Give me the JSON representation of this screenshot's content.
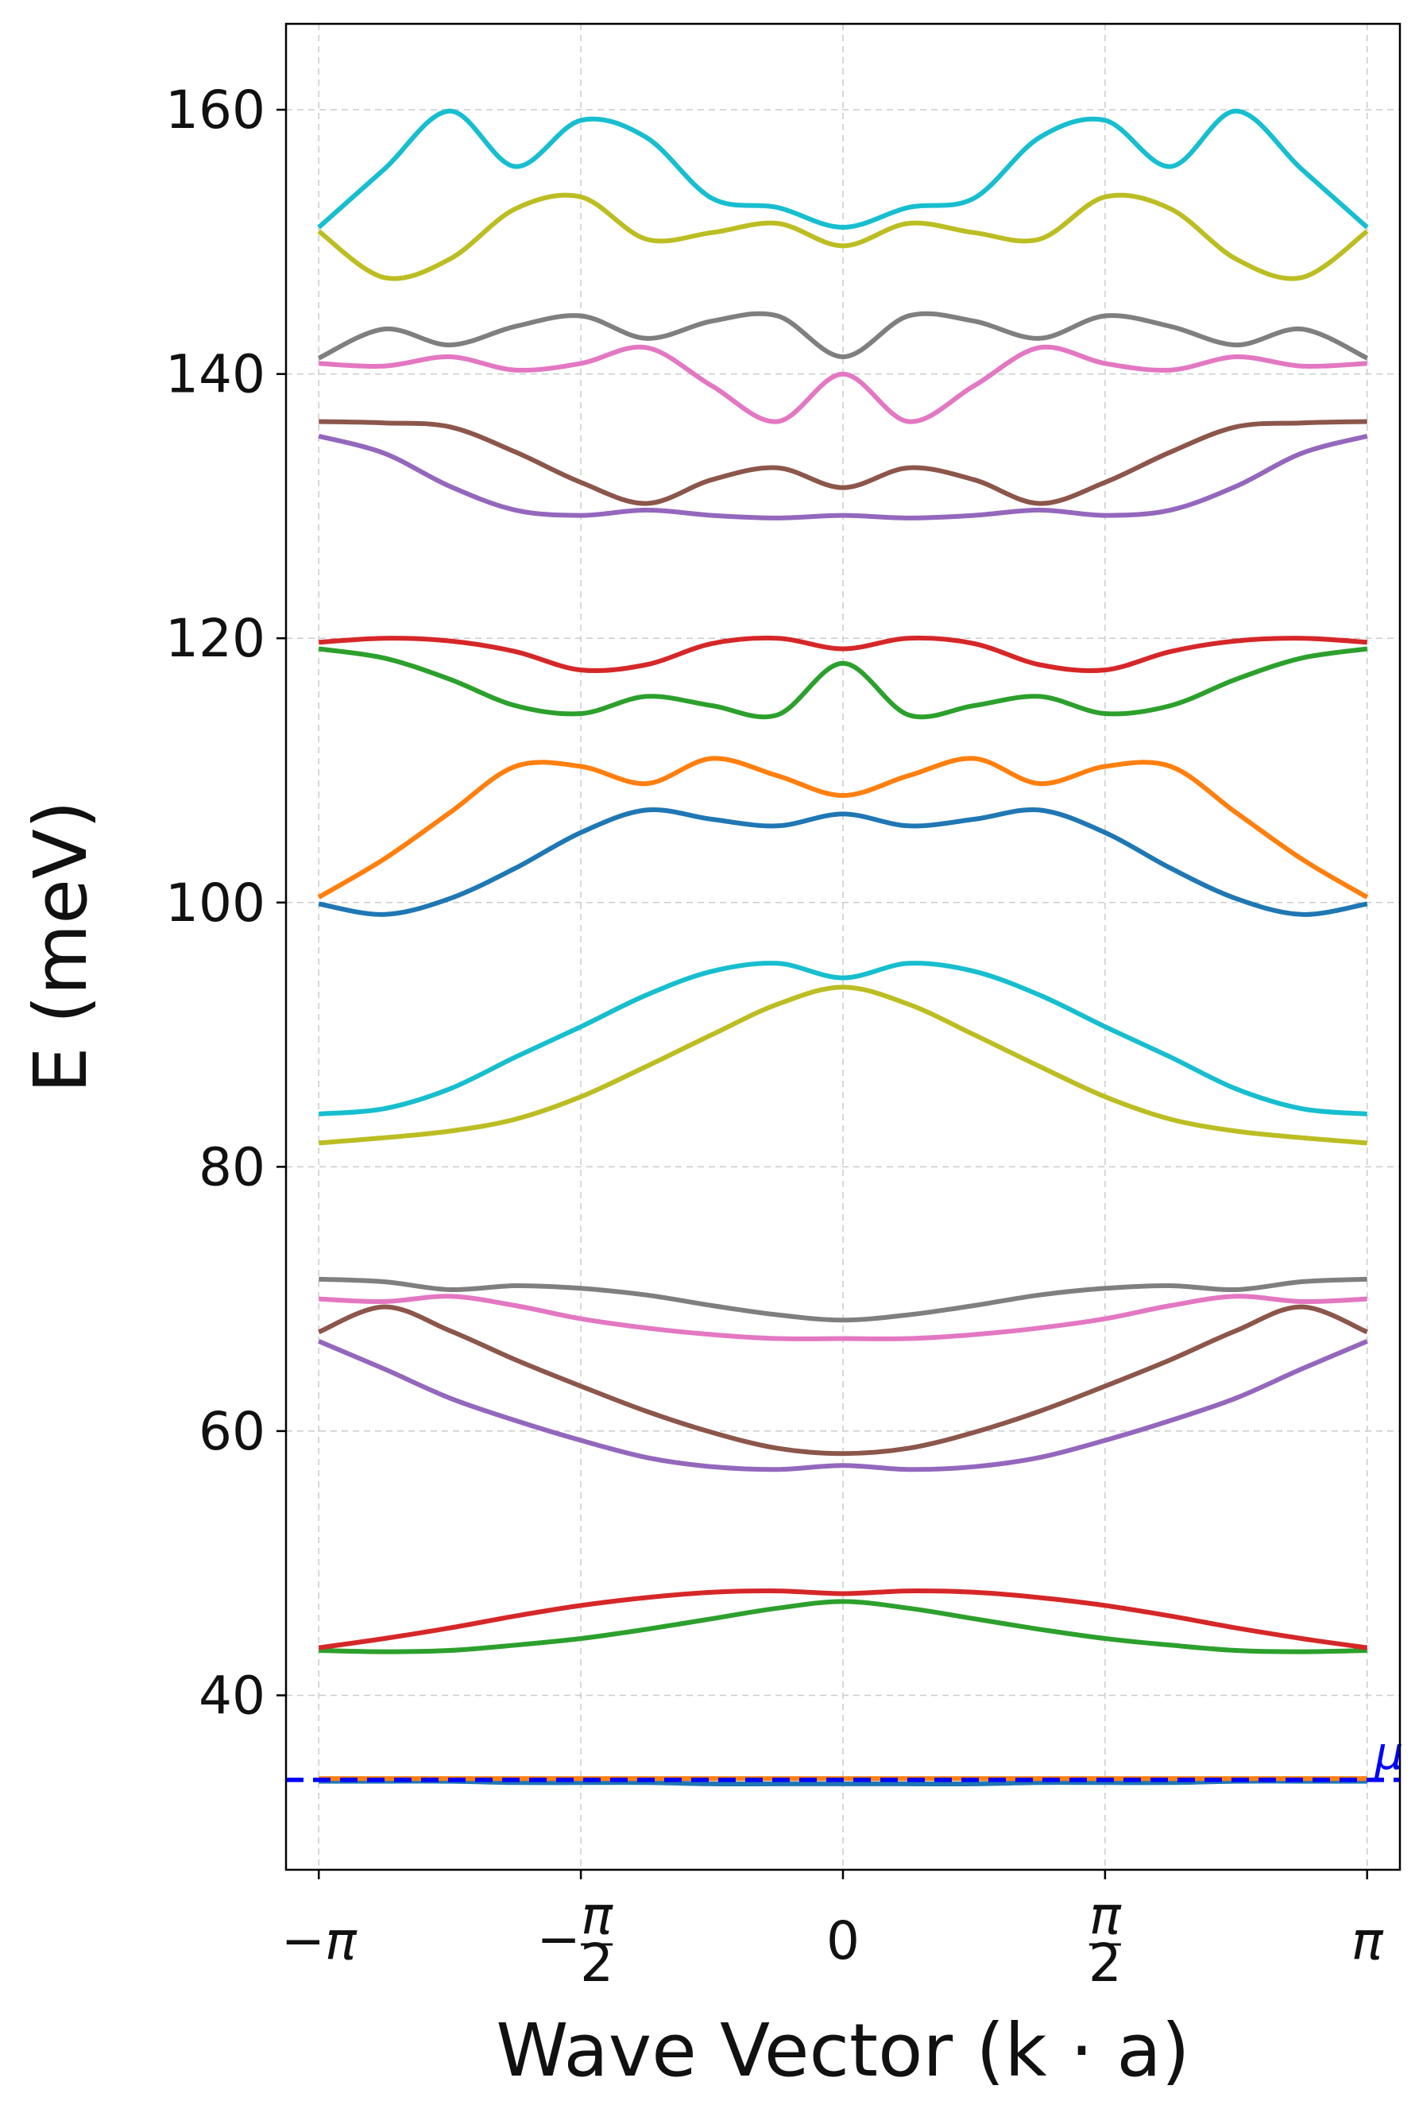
{
  "chart_data": {
    "type": "line",
    "title": "",
    "xlabel": "Wave Vector (k · a)",
    "ylabel": "E (meV)",
    "xlim": [
      -3.3379,
      3.3379
    ],
    "ylim": [
      26.8,
      166.5
    ],
    "x_ticks": [
      {
        "value": -3.1416,
        "label": "−π"
      },
      {
        "value": -1.5708,
        "label": "−π/2"
      },
      {
        "value": 0,
        "label": "0"
      },
      {
        "value": 1.5708,
        "label": "π/2"
      },
      {
        "value": 3.1416,
        "label": "π"
      }
    ],
    "y_ticks": [
      40,
      60,
      80,
      100,
      120,
      140,
      160
    ],
    "grid": true,
    "legend": "none",
    "reference_line": {
      "name": "μ",
      "y": 33.6,
      "color": "#0000ff",
      "style": "dashed"
    },
    "x": [
      -3.1416,
      -2.7489,
      -2.3562,
      -1.9635,
      -1.5708,
      -1.1781,
      -0.7854,
      -0.3927,
      0,
      0.3927,
      0.7854,
      1.1781,
      1.5708,
      1.9635,
      2.3562,
      2.7489,
      3.1416
    ],
    "series": [
      {
        "color": "#1f77b4",
        "values": [
          33.5,
          33.5,
          33.5,
          33.4,
          33.4,
          33.4,
          33.3,
          33.3,
          33.3,
          33.3,
          33.3,
          33.4,
          33.4,
          33.4,
          33.5,
          33.5,
          33.5
        ]
      },
      {
        "color": "#ff7f0e",
        "values": [
          33.7,
          33.7,
          33.7,
          33.7,
          33.7,
          33.7,
          33.7,
          33.7,
          33.7,
          33.7,
          33.7,
          33.7,
          33.7,
          33.7,
          33.7,
          33.7,
          33.7
        ]
      },
      {
        "color": "#2ca02c",
        "values": [
          43.4,
          43.3,
          43.4,
          43.8,
          44.3,
          45.0,
          45.8,
          46.6,
          47.1,
          46.6,
          45.8,
          45.0,
          44.3,
          43.8,
          43.4,
          43.3,
          43.4
        ]
      },
      {
        "color": "#d62728",
        "values": [
          43.6,
          44.3,
          45.1,
          46.0,
          46.8,
          47.4,
          47.8,
          47.9,
          47.7,
          47.9,
          47.8,
          47.4,
          46.8,
          46.0,
          45.1,
          44.3,
          43.6
        ]
      },
      {
        "color": "#9467bd",
        "values": [
          66.8,
          64.7,
          62.5,
          60.8,
          59.3,
          58.0,
          57.3,
          57.1,
          57.4,
          57.1,
          57.3,
          58.0,
          59.3,
          60.8,
          62.5,
          64.7,
          66.8
        ]
      },
      {
        "color": "#8c564b",
        "values": [
          67.5,
          69.4,
          67.6,
          65.4,
          63.4,
          61.5,
          59.9,
          58.7,
          58.3,
          58.7,
          59.9,
          61.5,
          63.4,
          65.4,
          67.6,
          69.4,
          67.5
        ]
      },
      {
        "color": "#e377c2",
        "values": [
          70.0,
          69.8,
          70.2,
          69.5,
          68.5,
          67.8,
          67.3,
          67.0,
          67.0,
          67.0,
          67.3,
          67.8,
          68.5,
          69.5,
          70.2,
          69.8,
          70.0
        ]
      },
      {
        "color": "#7f7f7f",
        "values": [
          71.5,
          71.3,
          70.7,
          71.0,
          70.8,
          70.3,
          69.5,
          68.8,
          68.4,
          68.8,
          69.5,
          70.3,
          70.8,
          71.0,
          70.7,
          71.3,
          71.5
        ]
      },
      {
        "color": "#bcbd22",
        "values": [
          81.8,
          82.2,
          82.7,
          83.6,
          85.3,
          87.6,
          90.0,
          92.3,
          93.6,
          92.3,
          90.0,
          87.6,
          85.3,
          83.6,
          82.7,
          82.2,
          81.8
        ]
      },
      {
        "color": "#17becf",
        "values": [
          84.0,
          84.4,
          85.9,
          88.3,
          90.6,
          93.0,
          94.8,
          95.4,
          94.3,
          95.4,
          94.8,
          93.0,
          90.6,
          88.3,
          85.9,
          84.4,
          84.0
        ]
      },
      {
        "color": "#1f77b4",
        "values": [
          99.9,
          99.1,
          100.3,
          102.6,
          105.3,
          107.0,
          106.3,
          105.8,
          106.7,
          105.8,
          106.3,
          107.0,
          105.3,
          102.6,
          100.3,
          99.1,
          99.9
        ]
      },
      {
        "color": "#ff7f0e",
        "values": [
          100.4,
          103.3,
          106.8,
          110.3,
          110.3,
          109.0,
          110.9,
          109.6,
          108.1,
          109.6,
          110.9,
          109.0,
          110.3,
          110.3,
          106.8,
          103.3,
          100.4
        ]
      },
      {
        "color": "#2ca02c",
        "values": [
          119.2,
          118.5,
          116.9,
          114.9,
          114.3,
          115.6,
          114.9,
          114.2,
          118.1,
          114.2,
          114.9,
          115.6,
          114.3,
          114.9,
          116.9,
          118.5,
          119.2
        ]
      },
      {
        "color": "#d62728",
        "values": [
          119.7,
          120.0,
          119.8,
          119.0,
          117.6,
          118.0,
          119.6,
          120.0,
          119.2,
          120.0,
          119.6,
          118.0,
          117.6,
          119.0,
          119.8,
          120.0,
          119.7
        ]
      },
      {
        "color": "#9467bd",
        "values": [
          135.3,
          134.0,
          131.5,
          129.7,
          129.3,
          129.7,
          129.3,
          129.1,
          129.3,
          129.1,
          129.3,
          129.7,
          129.3,
          129.7,
          131.5,
          134.0,
          135.3
        ]
      },
      {
        "color": "#8c564b",
        "values": [
          136.4,
          136.3,
          136.0,
          134.1,
          131.8,
          130.2,
          132.0,
          132.9,
          131.4,
          132.9,
          132.0,
          130.2,
          131.8,
          134.1,
          136.0,
          136.3,
          136.4
        ]
      },
      {
        "color": "#e377c2",
        "values": [
          140.8,
          140.6,
          141.3,
          140.3,
          140.8,
          142.0,
          139.1,
          136.4,
          140.0,
          136.4,
          139.1,
          142.0,
          140.8,
          140.3,
          141.3,
          140.6,
          140.8
        ]
      },
      {
        "color": "#7f7f7f",
        "values": [
          141.2,
          143.4,
          142.2,
          143.6,
          144.4,
          142.7,
          144.0,
          144.4,
          141.3,
          144.4,
          144.0,
          142.7,
          144.4,
          143.6,
          142.2,
          143.4,
          141.2
        ]
      },
      {
        "color": "#bcbd22",
        "values": [
          150.8,
          147.3,
          148.7,
          152.5,
          153.4,
          150.2,
          150.7,
          151.4,
          149.7,
          151.4,
          150.7,
          150.2,
          153.4,
          152.5,
          148.7,
          147.3,
          150.8
        ]
      },
      {
        "color": "#17becf",
        "values": [
          151.1,
          155.5,
          159.9,
          155.7,
          159.2,
          157.9,
          153.3,
          152.6,
          151.1,
          152.6,
          153.3,
          157.9,
          159.2,
          155.7,
          159.9,
          155.5,
          151.1
        ]
      }
    ]
  }
}
